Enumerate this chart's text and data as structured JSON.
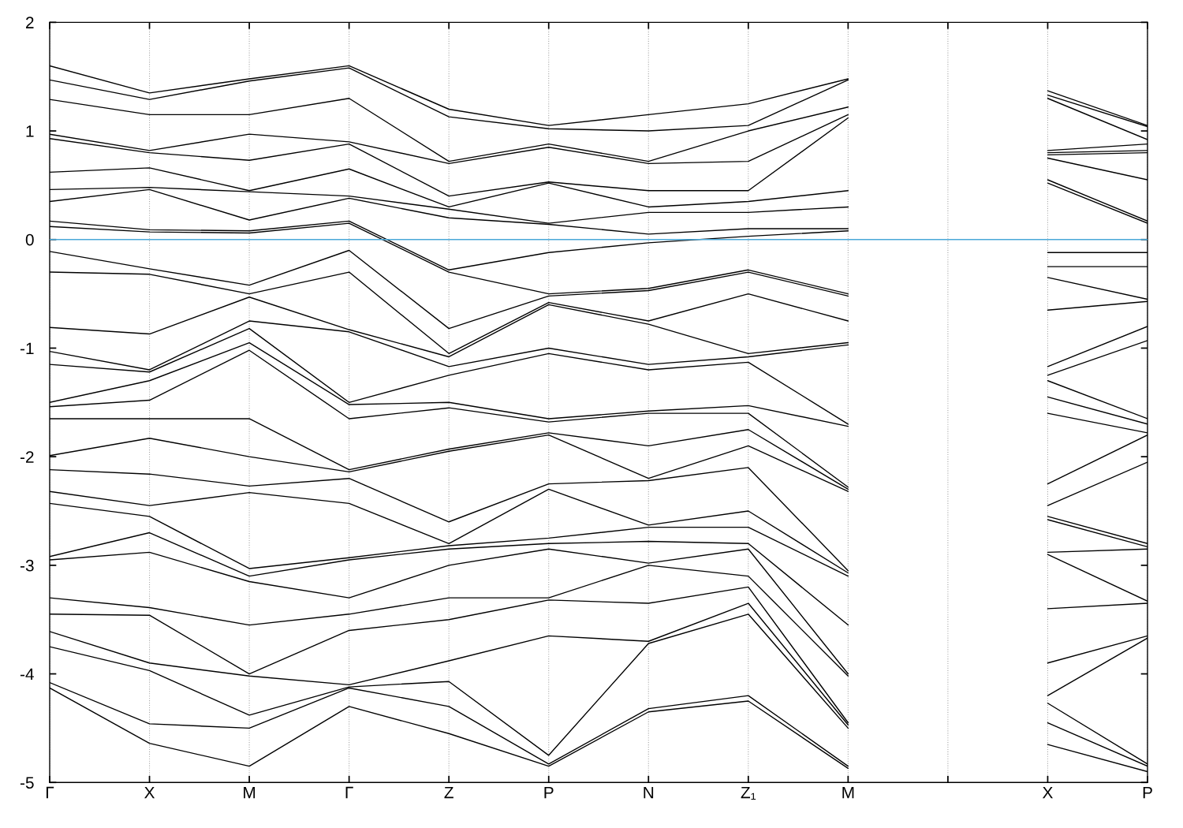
{
  "chart_data": {
    "type": "line",
    "categories": [
      "Γ",
      "X",
      "M",
      "Γ",
      "Z",
      "P",
      "N",
      "Z₁",
      "M",
      null,
      "X",
      "P"
    ],
    "ylim": [
      -5,
      2
    ],
    "yticks": [
      -5,
      -4,
      -3,
      -2,
      -1,
      0,
      1,
      2
    ],
    "grid": "x",
    "line_style": "solid",
    "ref_lines": [
      {
        "axis": "y",
        "value": 0,
        "color": "#4aa8d8"
      }
    ],
    "series": [
      {
        "color": "#000000",
        "values": [
          1.6,
          1.35,
          1.48,
          1.6,
          1.2,
          1.05,
          1.15,
          1.25,
          1.48,
          null,
          1.37,
          1.05
        ]
      },
      {
        "color": "#000000",
        "values": [
          1.47,
          1.29,
          1.46,
          1.58,
          1.13,
          1.02,
          1.0,
          1.05,
          1.47,
          null,
          1.33,
          1.04
        ]
      },
      {
        "color": "#000000",
        "values": [
          1.29,
          1.15,
          1.15,
          1.3,
          0.72,
          0.88,
          0.72,
          1.0,
          1.22,
          null,
          1.3,
          0.92
        ]
      },
      {
        "color": "#000000",
        "values": [
          0.97,
          0.82,
          0.97,
          0.9,
          0.7,
          0.85,
          0.7,
          0.72,
          1.15,
          null,
          0.82,
          0.88
        ]
      },
      {
        "color": "#000000",
        "values": [
          0.93,
          0.8,
          0.73,
          0.88,
          0.4,
          0.53,
          0.45,
          0.45,
          1.12,
          null,
          0.8,
          0.82
        ]
      },
      {
        "color": "#000000",
        "values": [
          0.62,
          0.66,
          0.45,
          0.65,
          0.3,
          0.52,
          0.3,
          0.35,
          0.45,
          null,
          0.78,
          0.8
        ]
      },
      {
        "color": "#000000",
        "values": [
          0.46,
          0.48,
          0.44,
          0.4,
          0.28,
          0.15,
          0.25,
          0.25,
          0.3,
          null,
          0.75,
          0.55
        ]
      },
      {
        "color": "#000000",
        "values": [
          0.35,
          0.46,
          0.18,
          0.38,
          0.2,
          0.14,
          0.05,
          0.1,
          0.1,
          null,
          0.55,
          0.17
        ]
      },
      {
        "color": "#000000",
        "values": [
          0.17,
          0.09,
          0.08,
          0.17,
          -0.28,
          -0.12,
          -0.03,
          0.03,
          0.08,
          null,
          0.52,
          0.15
        ]
      },
      {
        "color": "#000000",
        "values": [
          0.12,
          0.07,
          0.06,
          0.15,
          -0.3,
          -0.5,
          -0.45,
          -0.28,
          -0.5,
          null,
          -0.12,
          -0.12
        ]
      },
      {
        "color": "#000000",
        "values": [
          -0.11,
          -0.27,
          -0.42,
          -0.1,
          -0.82,
          -0.52,
          -0.47,
          -0.3,
          -0.52,
          null,
          -0.25,
          -0.25
        ]
      },
      {
        "color": "#000000",
        "values": [
          -0.3,
          -0.32,
          -0.5,
          -0.3,
          -1.05,
          -0.58,
          -0.75,
          -0.5,
          -0.75,
          null,
          -0.35,
          -0.55
        ]
      },
      {
        "color": "#000000",
        "values": [
          -0.81,
          -0.87,
          -0.53,
          -0.83,
          -1.08,
          -0.6,
          -0.78,
          -1.05,
          -0.95,
          null,
          -0.65,
          -0.57
        ]
      },
      {
        "color": "#000000",
        "values": [
          -1.03,
          -1.2,
          -0.75,
          -0.85,
          -1.17,
          -1.0,
          -1.15,
          -1.08,
          -0.97,
          null,
          -1.17,
          -0.8
        ]
      },
      {
        "color": "#000000",
        "values": [
          -1.15,
          -1.22,
          -0.82,
          -1.5,
          -1.25,
          -1.05,
          -1.2,
          -1.13,
          -1.7,
          null,
          -1.25,
          -0.93
        ]
      },
      {
        "color": "#000000",
        "values": [
          -1.5,
          -1.3,
          -0.95,
          -1.52,
          -1.5,
          -1.65,
          -1.58,
          -1.53,
          -1.72,
          null,
          -1.3,
          -1.65
        ]
      },
      {
        "color": "#000000",
        "values": [
          -1.54,
          -1.48,
          -1.02,
          -1.65,
          -1.55,
          -1.68,
          -1.6,
          -1.6,
          -2.28,
          null,
          -1.45,
          -1.7
        ]
      },
      {
        "color": "#000000",
        "values": [
          -1.65,
          -1.65,
          -1.65,
          -2.12,
          -1.93,
          -1.78,
          -1.9,
          -1.75,
          -2.3,
          null,
          -1.6,
          -1.78
        ]
      },
      {
        "color": "#000000",
        "values": [
          -1.99,
          -1.83,
          -2.0,
          -2.14,
          -1.95,
          -1.8,
          -2.2,
          -1.9,
          -2.32,
          null,
          -2.25,
          -1.8
        ]
      },
      {
        "color": "#000000",
        "values": [
          -2.12,
          -2.16,
          -2.27,
          -2.2,
          -2.6,
          -2.25,
          -2.22,
          -2.1,
          -3.05,
          null,
          -2.45,
          -2.05
        ]
      },
      {
        "color": "#000000",
        "values": [
          -2.32,
          -2.45,
          -2.33,
          -2.43,
          -2.8,
          -2.3,
          -2.63,
          -2.5,
          -3.07,
          null,
          -2.55,
          -2.8
        ]
      },
      {
        "color": "#000000",
        "values": [
          -2.43,
          -2.55,
          -3.03,
          -2.93,
          -2.82,
          -2.75,
          -2.65,
          -2.65,
          -3.1,
          null,
          -2.58,
          -2.83
        ]
      },
      {
        "color": "#000000",
        "values": [
          -2.92,
          -2.7,
          -3.1,
          -2.95,
          -2.85,
          -2.8,
          -2.78,
          -2.8,
          -3.55,
          null,
          -2.88,
          -2.85
        ]
      },
      {
        "color": "#000000",
        "values": [
          -2.95,
          -2.88,
          -3.15,
          -3.3,
          -3.0,
          -2.85,
          -2.98,
          -2.85,
          -4.0,
          null,
          -2.9,
          -3.33
        ]
      },
      {
        "color": "#000000",
        "values": [
          -3.3,
          -3.39,
          -3.55,
          -3.45,
          -3.3,
          -3.3,
          -3.0,
          -3.1,
          -4.02,
          null,
          -3.4,
          -3.35
        ]
      },
      {
        "color": "#000000",
        "values": [
          -3.45,
          -3.46,
          -4.0,
          -3.6,
          -3.5,
          -3.32,
          -3.35,
          -3.2,
          -4.45,
          null,
          -3.9,
          -3.65
        ]
      },
      {
        "color": "#000000",
        "values": [
          -3.61,
          -3.9,
          -4.02,
          -4.1,
          -3.88,
          -3.65,
          -3.7,
          -3.35,
          -4.47,
          null,
          -4.2,
          -3.67
        ]
      },
      {
        "color": "#000000",
        "values": [
          -3.75,
          -3.97,
          -4.38,
          -4.12,
          -4.07,
          -4.75,
          -3.72,
          -3.45,
          -4.5,
          null,
          -4.27,
          -4.83
        ]
      },
      {
        "color": "#000000",
        "values": [
          -4.08,
          -4.46,
          -4.5,
          -4.13,
          -4.3,
          -4.83,
          -4.32,
          -4.2,
          -4.85,
          null,
          -4.45,
          -4.85
        ]
      },
      {
        "color": "#000000",
        "values": [
          -4.13,
          -4.64,
          -4.85,
          -4.3,
          -4.55,
          -4.85,
          -4.35,
          -4.25,
          -4.87,
          null,
          -4.65,
          -4.9
        ]
      }
    ]
  }
}
